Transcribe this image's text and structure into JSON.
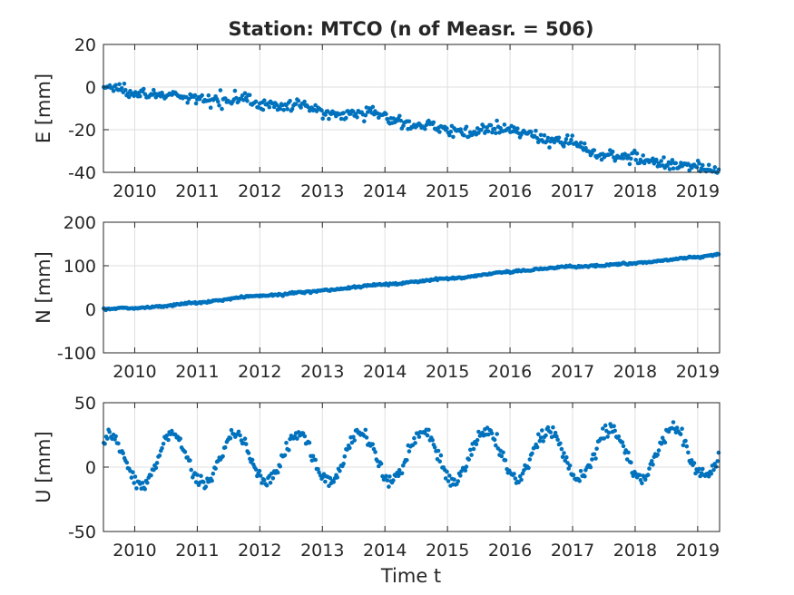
{
  "title": "Station: MTCO (n of Measr. = 506)",
  "xlabel": "Time t",
  "colors": {
    "marker": "#0072BD",
    "axis": "#262626",
    "grid": "#dfdfdf"
  },
  "chart_data": [
    {
      "type": "scatter",
      "ylabel": "E [mm]",
      "xlim": [
        2009.5,
        2019.35
      ],
      "ylim": [
        -40,
        20
      ],
      "xticks": [
        2010,
        2011,
        2012,
        2013,
        2014,
        2015,
        2016,
        2017,
        2018,
        2019
      ],
      "yticks": [
        -40,
        -20,
        0,
        20
      ],
      "grid": true,
      "trend": [
        [
          2009.5,
          0
        ],
        [
          2010.5,
          -4
        ],
        [
          2011.0,
          -6
        ],
        [
          2011.7,
          -5
        ],
        [
          2012.0,
          -8
        ],
        [
          2012.7,
          -9
        ],
        [
          2013.0,
          -12
        ],
        [
          2013.8,
          -12
        ],
        [
          2014.2,
          -16
        ],
        [
          2014.8,
          -19
        ],
        [
          2015.3,
          -21
        ],
        [
          2015.8,
          -20
        ],
        [
          2016.2,
          -21
        ],
        [
          2016.6,
          -25
        ],
        [
          2017.1,
          -26
        ],
        [
          2017.3,
          -31
        ],
        [
          2018.0,
          -33
        ],
        [
          2018.3,
          -35
        ],
        [
          2018.8,
          -37
        ],
        [
          2019.35,
          -39
        ]
      ],
      "noise": 1.3,
      "seasonal": {
        "amplitude": 0.4,
        "phase": 0
      }
    },
    {
      "type": "scatter",
      "ylabel": "N [mm]",
      "xlim": [
        2009.5,
        2019.35
      ],
      "ylim": [
        -100,
        200
      ],
      "xticks": [
        2010,
        2011,
        2012,
        2013,
        2014,
        2015,
        2016,
        2017,
        2018,
        2019
      ],
      "yticks": [
        -100,
        0,
        100,
        200
      ],
      "grid": true,
      "trend": [
        [
          2009.5,
          0
        ],
        [
          2010.0,
          3
        ],
        [
          2010.5,
          8
        ],
        [
          2011.0,
          15
        ],
        [
          2011.5,
          24
        ],
        [
          2012.0,
          31
        ],
        [
          2012.5,
          37
        ],
        [
          2013.0,
          43
        ],
        [
          2013.5,
          51
        ],
        [
          2014.0,
          57
        ],
        [
          2014.5,
          64
        ],
        [
          2015.0,
          70
        ],
        [
          2015.5,
          78
        ],
        [
          2016.0,
          86
        ],
        [
          2016.5,
          93
        ],
        [
          2017.0,
          98
        ],
        [
          2017.5,
          101
        ],
        [
          2018.0,
          106
        ],
        [
          2018.5,
          113
        ],
        [
          2019.0,
          120
        ],
        [
          2019.35,
          128
        ]
      ],
      "noise": 1.2,
      "seasonal": {
        "amplitude": 0.8,
        "phase": 0
      }
    },
    {
      "type": "scatter",
      "ylabel": "U [mm]",
      "xlim": [
        2009.5,
        2019.35
      ],
      "ylim": [
        -50,
        50
      ],
      "xticks": [
        2010,
        2011,
        2012,
        2013,
        2014,
        2015,
        2016,
        2017,
        2018,
        2019
      ],
      "yticks": [
        -50,
        0,
        50
      ],
      "grid": true,
      "trend": [
        [
          2009.5,
          5
        ],
        [
          2019.35,
          12
        ]
      ],
      "noise": 2.5,
      "seasonal": {
        "amplitude": 19,
        "phase": 0.9
      }
    }
  ]
}
